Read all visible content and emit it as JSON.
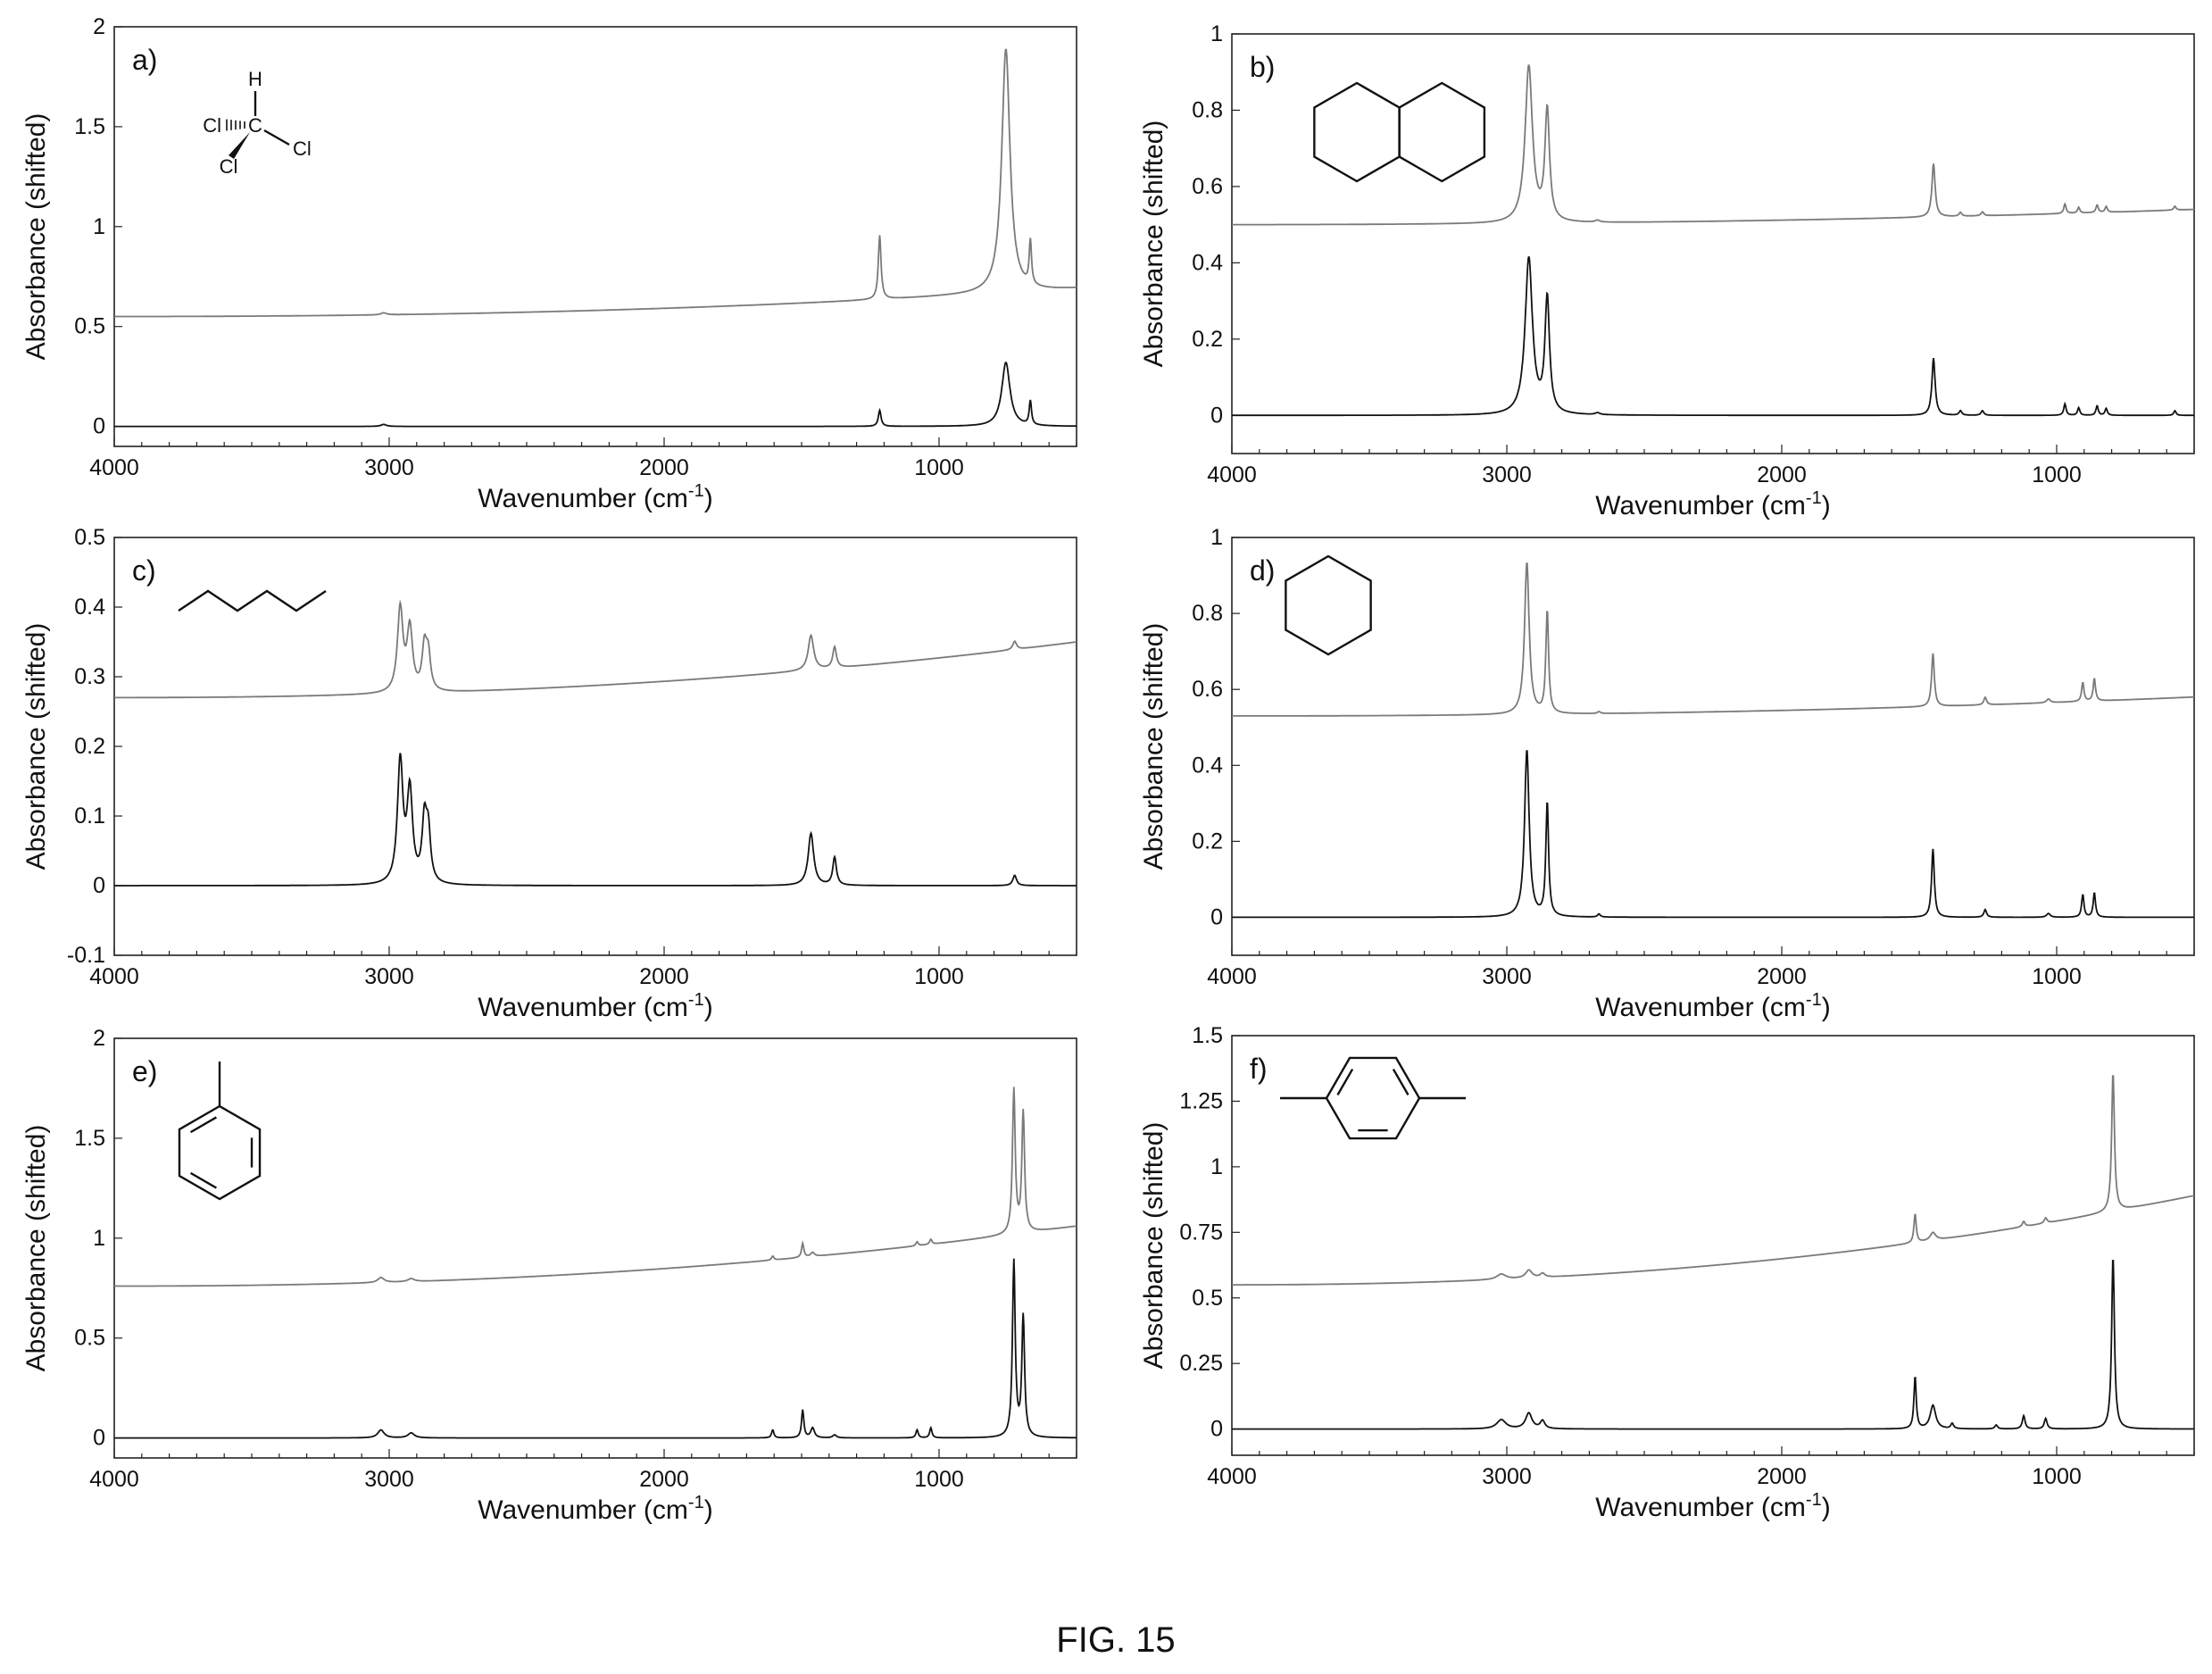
{
  "figure": {
    "caption": "FIG. 15",
    "xlabel_text": "Wavenumber (cm",
    "xlabel_sup": "-1",
    "xlabel_close": ")",
    "ylabel": "Absorbance (shifted)"
  },
  "colors": {
    "top_trace": "#7a7a7a",
    "bottom_trace": "#111111",
    "axis": "#222222"
  },
  "chart_data": [
    {
      "id": "a",
      "type": "line",
      "letter": "a)",
      "molecule": "chloroform",
      "atom_labels": [
        "H",
        "Cl",
        "C",
        "Cl",
        "Cl"
      ],
      "xlim": [
        4000,
        500
      ],
      "ylim": [
        -0.1,
        2
      ],
      "xticks": [
        4000,
        3000,
        2000,
        1000
      ],
      "xticklabels": [
        "4000",
        "3000",
        "2000",
        "1000"
      ],
      "yticks": [
        0,
        0.5,
        1,
        1.5,
        2
      ],
      "yticklabels": [
        "0",
        "0.5",
        "1",
        "1.5",
        "2"
      ],
      "series": [
        {
          "offset": 0.55,
          "tilt": 0.14,
          "peaks": [
            [
              3020,
              0.01,
              12
            ],
            [
              1216,
              0.32,
              6
            ],
            [
              757,
              1.22,
              18
            ],
            [
              668,
              0.22,
              5
            ]
          ]
        },
        {
          "offset": 0.0,
          "tilt": 0.0,
          "peaks": [
            [
              3020,
              0.01,
              12
            ],
            [
              1216,
              0.08,
              6
            ],
            [
              757,
              0.32,
              18
            ],
            [
              668,
              0.12,
              5
            ]
          ]
        }
      ]
    },
    {
      "id": "b",
      "type": "line",
      "letter": "b)",
      "molecule": "decalin",
      "xlim": [
        4000,
        500
      ],
      "ylim": [
        -0.1,
        1
      ],
      "xticks": [
        4000,
        3000,
        2000,
        1000
      ],
      "xticklabels": [
        "4000",
        "3000",
        "2000",
        "1000"
      ],
      "yticks": [
        0,
        0.2,
        0.4,
        0.6,
        0.8,
        1
      ],
      "yticklabels": [
        "0",
        "0.2",
        "0.4",
        "0.6",
        "0.8",
        "1"
      ],
      "series": [
        {
          "offset": 0.5,
          "tilt": 0.04,
          "peaks": [
            [
              2920,
              0.41,
              16
            ],
            [
              2853,
              0.29,
              10
            ],
            [
              2670,
              0.005,
              10
            ],
            [
              1448,
              0.14,
              7
            ],
            [
              1350,
              0.01,
              6
            ],
            [
              1270,
              0.01,
              6
            ],
            [
              970,
              0.025,
              5
            ],
            [
              920,
              0.015,
              5
            ],
            [
              853,
              0.02,
              5
            ],
            [
              820,
              0.015,
              5
            ],
            [
              570,
              0.01,
              5
            ]
          ]
        },
        {
          "offset": 0.0,
          "tilt": 0.0,
          "peaks": [
            [
              2920,
              0.41,
              16
            ],
            [
              2853,
              0.3,
              10
            ],
            [
              2670,
              0.005,
              10
            ],
            [
              1448,
              0.15,
              7
            ],
            [
              1350,
              0.012,
              6
            ],
            [
              1270,
              0.012,
              6
            ],
            [
              970,
              0.03,
              5
            ],
            [
              920,
              0.02,
              5
            ],
            [
              853,
              0.025,
              5
            ],
            [
              820,
              0.018,
              5
            ],
            [
              570,
              0.012,
              5
            ]
          ]
        }
      ]
    },
    {
      "id": "c",
      "type": "line",
      "letter": "c)",
      "molecule": "hexane",
      "xlim": [
        4000,
        500
      ],
      "ylim": [
        -0.1,
        0.5
      ],
      "xticks": [
        4000,
        3000,
        2000,
        1000
      ],
      "xticklabels": [
        "4000",
        "3000",
        "2000",
        "1000"
      ],
      "yticks": [
        -0.1,
        0,
        0.1,
        0.2,
        0.3,
        0.4,
        0.5
      ],
      "yticklabels": [
        "-0.1",
        "0",
        "0.1",
        "0.2",
        "0.3",
        "0.4",
        "0.5"
      ],
      "series": [
        {
          "offset": 0.27,
          "tilt": 0.08,
          "peaks": [
            [
              2960,
              0.12,
              12
            ],
            [
              2925,
              0.09,
              12
            ],
            [
              2872,
              0.06,
              10
            ],
            [
              2858,
              0.05,
              10
            ],
            [
              1466,
              0.05,
              12
            ],
            [
              1380,
              0.03,
              8
            ],
            [
              725,
              0.012,
              8
            ]
          ]
        },
        {
          "offset": 0.0,
          "tilt": 0.0,
          "peaks": [
            [
              2960,
              0.175,
              12
            ],
            [
              2925,
              0.13,
              12
            ],
            [
              2872,
              0.085,
              10
            ],
            [
              2858,
              0.07,
              10
            ],
            [
              1466,
              0.075,
              12
            ],
            [
              1380,
              0.04,
              8
            ],
            [
              725,
              0.015,
              8
            ]
          ]
        }
      ]
    },
    {
      "id": "d",
      "type": "line",
      "letter": "d)",
      "molecule": "cyclohexane",
      "xlim": [
        4000,
        500
      ],
      "ylim": [
        -0.1,
        1
      ],
      "xticks": [
        4000,
        3000,
        2000,
        1000
      ],
      "xticklabels": [
        "4000",
        "3000",
        "2000",
        "1000"
      ],
      "yticks": [
        0,
        0.2,
        0.4,
        0.6,
        0.8,
        1
      ],
      "yticklabels": [
        "0",
        "0.2",
        "0.4",
        "0.6",
        "0.8",
        "1"
      ],
      "series": [
        {
          "offset": 0.53,
          "tilt": 0.05,
          "peaks": [
            [
              2927,
              0.4,
              10
            ],
            [
              2853,
              0.27,
              6
            ],
            [
              2665,
              0.005,
              6
            ],
            [
              1450,
              0.14,
              6
            ],
            [
              1260,
              0.02,
              6
            ],
            [
              1030,
              0.01,
              8
            ],
            [
              905,
              0.05,
              5
            ],
            [
              863,
              0.06,
              5
            ]
          ]
        },
        {
          "offset": 0.0,
          "tilt": 0.0,
          "peaks": [
            [
              2927,
              0.44,
              10
            ],
            [
              2853,
              0.3,
              6
            ],
            [
              2665,
              0.008,
              6
            ],
            [
              1450,
              0.18,
              6
            ],
            [
              1260,
              0.02,
              6
            ],
            [
              1030,
              0.01,
              8
            ],
            [
              905,
              0.06,
              5
            ],
            [
              863,
              0.065,
              5
            ]
          ]
        }
      ]
    },
    {
      "id": "e",
      "type": "line",
      "letter": "e)",
      "molecule": "toluene",
      "xlim": [
        4000,
        500
      ],
      "ylim": [
        -0.1,
        2
      ],
      "xticks": [
        4000,
        3000,
        2000,
        1000
      ],
      "xticklabels": [
        "4000",
        "3000",
        "2000",
        "1000"
      ],
      "yticks": [
        0,
        0.5,
        1,
        1.5,
        2
      ],
      "yticklabels": [
        "0",
        "0.5",
        "1",
        "1.5",
        "2"
      ],
      "series": [
        {
          "offset": 0.76,
          "tilt": 0.3,
          "peaks": [
            [
              3030,
              0.025,
              14
            ],
            [
              2920,
              0.015,
              14
            ],
            [
              1605,
              0.02,
              5
            ],
            [
              1496,
              0.07,
              5
            ],
            [
              1460,
              0.02,
              8
            ],
            [
              1080,
              0.02,
              5
            ],
            [
              1030,
              0.025,
              5
            ],
            [
              728,
              0.72,
              6
            ],
            [
              694,
              0.6,
              6
            ]
          ]
        },
        {
          "offset": 0.0,
          "tilt": 0.0,
          "peaks": [
            [
              3030,
              0.04,
              14
            ],
            [
              2920,
              0.025,
              14
            ],
            [
              1605,
              0.04,
              5
            ],
            [
              1496,
              0.14,
              5
            ],
            [
              1460,
              0.05,
              8
            ],
            [
              1380,
              0.015,
              8
            ],
            [
              1080,
              0.04,
              5
            ],
            [
              1030,
              0.05,
              5
            ],
            [
              728,
              0.88,
              6
            ],
            [
              694,
              0.6,
              6
            ]
          ]
        }
      ]
    },
    {
      "id": "f",
      "type": "line",
      "letter": "f)",
      "molecule": "p-xylene",
      "xlim": [
        4000,
        500
      ],
      "ylim": [
        -0.1,
        1.5
      ],
      "xticks": [
        4000,
        3000,
        2000,
        1000
      ],
      "xticklabels": [
        "4000",
        "3000",
        "2000",
        "1000"
      ],
      "yticks": [
        0,
        0.25,
        0.5,
        0.75,
        1,
        1.25,
        1.5
      ],
      "yticklabels": [
        "0",
        "0.25",
        "0.5",
        "0.75",
        "1",
        "1.25",
        "1.5"
      ],
      "series": [
        {
          "offset": 0.55,
          "tilt": 0.34,
          "peaks": [
            [
              3020,
              0.02,
              20
            ],
            [
              2920,
              0.03,
              14
            ],
            [
              2870,
              0.015,
              10
            ],
            [
              1515,
              0.11,
              5
            ],
            [
              1450,
              0.03,
              12
            ],
            [
              1120,
              0.02,
              6
            ],
            [
              1040,
              0.02,
              6
            ],
            [
              795,
              0.53,
              6
            ]
          ]
        },
        {
          "offset": 0.0,
          "tilt": 0.0,
          "peaks": [
            [
              3020,
              0.035,
              20
            ],
            [
              2920,
              0.06,
              14
            ],
            [
              2870,
              0.03,
              10
            ],
            [
              1515,
              0.2,
              5
            ],
            [
              1450,
              0.09,
              12
            ],
            [
              1380,
              0.02,
              6
            ],
            [
              1220,
              0.015,
              6
            ],
            [
              1120,
              0.05,
              6
            ],
            [
              1040,
              0.04,
              6
            ],
            [
              795,
              0.66,
              6
            ]
          ]
        }
      ]
    }
  ]
}
